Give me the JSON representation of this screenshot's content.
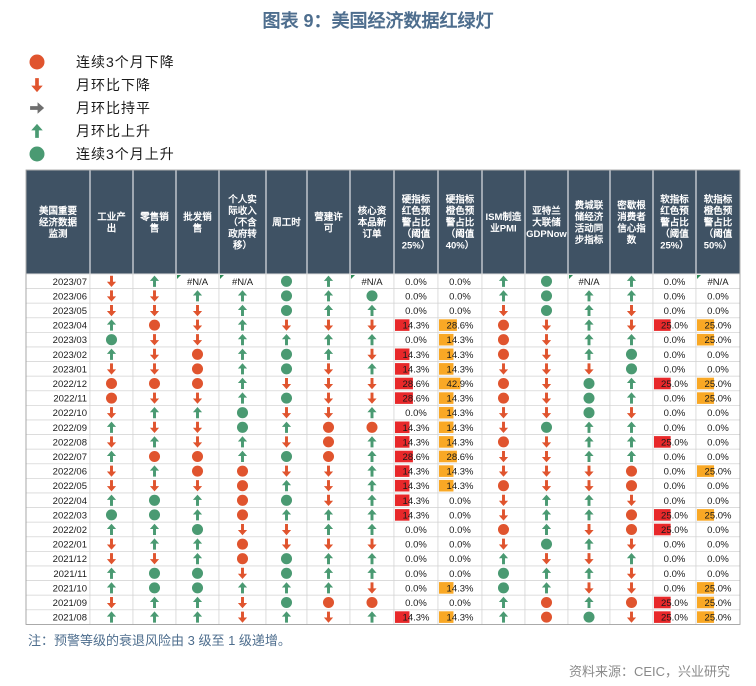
{
  "title": "图表 9：美国经济数据红绿灯",
  "legend": [
    {
      "icon": "red-dot",
      "label": "连续3个月下降"
    },
    {
      "icon": "down-arrow",
      "label": "月环比下降"
    },
    {
      "icon": "right-arrow",
      "label": "月环比持平"
    },
    {
      "icon": "up-arrow",
      "label": "月环比上升"
    },
    {
      "icon": "green-dot",
      "label": "连续3个月上升"
    }
  ],
  "colors": {
    "header_bg": "#3f5264",
    "red": "#e0542e",
    "green": "#4a9a72",
    "gray": "#6f6f6f",
    "bar_red": "#e8282a",
    "bar_orange": "#f9a825",
    "title": "#4e6e8e"
  },
  "chart_data": {
    "type": "table",
    "columns": [
      "美国重要经济数据监测",
      "工业产出",
      "零售销售",
      "批发销售",
      "个人实际收入（不含政府转移）",
      "周工时",
      "营建许可",
      "核心资本品新订单",
      "硬指标红色预警占比（阈值25%）",
      "硬指标橙色预警占比（阈值40%）",
      "ISM制造业PMI",
      "亚特兰大联储GDPNow",
      "费城联储经济活动同步指标",
      "密歇根消费者信心指数",
      "软指标红色预警占比（阈值25%）",
      "软指标橙色预警占比（阈值50%）"
    ],
    "signal_codes": {
      "R": "red-dot",
      "D": "down-arrow",
      "F": "right-arrow",
      "U": "up-arrow",
      "G": "green-dot",
      "N": "#N/A"
    },
    "rows": [
      {
        "date": "2023/07",
        "s1": [
          "D",
          "U",
          "N",
          "N",
          "G",
          "U",
          "N"
        ],
        "h": [
          "0.0%",
          "0.0%"
        ],
        "s2": [
          "U",
          "G",
          "N",
          "U"
        ],
        "sf": [
          "0.0%",
          "#N/A"
        ]
      },
      {
        "date": "2023/06",
        "s1": [
          "D",
          "D",
          "U",
          "U",
          "G",
          "U",
          "G"
        ],
        "h": [
          "0.0%",
          "0.0%"
        ],
        "s2": [
          "U",
          "G",
          "U",
          "U"
        ],
        "sf": [
          "0.0%",
          "0.0%"
        ]
      },
      {
        "date": "2023/05",
        "s1": [
          "D",
          "D",
          "D",
          "U",
          "G",
          "U",
          "U"
        ],
        "h": [
          "0.0%",
          "0.0%"
        ],
        "s2": [
          "D",
          "G",
          "U",
          "D"
        ],
        "sf": [
          "0.0%",
          "0.0%"
        ]
      },
      {
        "date": "2023/04",
        "s1": [
          "U",
          "R",
          "D",
          "U",
          "D",
          "D",
          "D"
        ],
        "h": [
          "14.3%",
          "28.6%"
        ],
        "s2": [
          "R",
          "D",
          "U",
          "D"
        ],
        "sf": [
          "25.0%",
          "25.0%"
        ]
      },
      {
        "date": "2023/03",
        "s1": [
          "G",
          "D",
          "D",
          "U",
          "U",
          "U",
          "U"
        ],
        "h": [
          "0.0%",
          "14.3%"
        ],
        "s2": [
          "R",
          "D",
          "U",
          "U"
        ],
        "sf": [
          "0.0%",
          "25.0%"
        ]
      },
      {
        "date": "2023/02",
        "s1": [
          "U",
          "D",
          "R",
          "U",
          "G",
          "U",
          "D"
        ],
        "h": [
          "14.3%",
          "14.3%"
        ],
        "s2": [
          "R",
          "D",
          "U",
          "G"
        ],
        "sf": [
          "0.0%",
          "0.0%"
        ]
      },
      {
        "date": "2023/01",
        "s1": [
          "D",
          "D",
          "R",
          "U",
          "G",
          "D",
          "U"
        ],
        "h": [
          "14.3%",
          "14.3%"
        ],
        "s2": [
          "D",
          "D",
          "D",
          "G"
        ],
        "sf": [
          "0.0%",
          "0.0%"
        ]
      },
      {
        "date": "2022/12",
        "s1": [
          "R",
          "R",
          "R",
          "U",
          "D",
          "D",
          "D"
        ],
        "h": [
          "28.6%",
          "42.9%"
        ],
        "s2": [
          "R",
          "D",
          "G",
          "U"
        ],
        "sf": [
          "25.0%",
          "25.0%"
        ]
      },
      {
        "date": "2022/11",
        "s1": [
          "R",
          "D",
          "D",
          "U",
          "G",
          "D",
          "D"
        ],
        "h": [
          "28.6%",
          "14.3%"
        ],
        "s2": [
          "R",
          "D",
          "G",
          "U"
        ],
        "sf": [
          "0.0%",
          "25.0%"
        ]
      },
      {
        "date": "2022/10",
        "s1": [
          "D",
          "U",
          "U",
          "G",
          "D",
          "D",
          "U"
        ],
        "h": [
          "0.0%",
          "14.3%"
        ],
        "s2": [
          "D",
          "D",
          "G",
          "D"
        ],
        "sf": [
          "0.0%",
          "0.0%"
        ]
      },
      {
        "date": "2022/09",
        "s1": [
          "U",
          "D",
          "D",
          "G",
          "U",
          "R",
          "R"
        ],
        "h": [
          "14.3%",
          "14.3%"
        ],
        "s2": [
          "D",
          "G",
          "U",
          "U"
        ],
        "sf": [
          "0.0%",
          "0.0%"
        ]
      },
      {
        "date": "2022/08",
        "s1": [
          "D",
          "U",
          "D",
          "U",
          "D",
          "R",
          "U"
        ],
        "h": [
          "14.3%",
          "14.3%"
        ],
        "s2": [
          "R",
          "D",
          "U",
          "U"
        ],
        "sf": [
          "25.0%",
          "0.0%"
        ]
      },
      {
        "date": "2022/07",
        "s1": [
          "U",
          "R",
          "R",
          "U",
          "G",
          "R",
          "U"
        ],
        "h": [
          "28.6%",
          "28.6%"
        ],
        "s2": [
          "D",
          "D",
          "U",
          "U"
        ],
        "sf": [
          "0.0%",
          "0.0%"
        ]
      },
      {
        "date": "2022/06",
        "s1": [
          "D",
          "U",
          "R",
          "R",
          "D",
          "D",
          "U"
        ],
        "h": [
          "14.3%",
          "14.3%"
        ],
        "s2": [
          "D",
          "D",
          "D",
          "R"
        ],
        "sf": [
          "0.0%",
          "25.0%"
        ]
      },
      {
        "date": "2022/05",
        "s1": [
          "D",
          "D",
          "D",
          "R",
          "U",
          "D",
          "U"
        ],
        "h": [
          "14.3%",
          "14.3%"
        ],
        "s2": [
          "R",
          "D",
          "D",
          "R"
        ],
        "sf": [
          "0.0%",
          "0.0%"
        ]
      },
      {
        "date": "2022/04",
        "s1": [
          "U",
          "G",
          "U",
          "R",
          "G",
          "D",
          "U"
        ],
        "h": [
          "14.3%",
          "0.0%"
        ],
        "s2": [
          "D",
          "U",
          "U",
          "D"
        ],
        "sf": [
          "0.0%",
          "0.0%"
        ]
      },
      {
        "date": "2022/03",
        "s1": [
          "G",
          "G",
          "U",
          "R",
          "U",
          "U",
          "U"
        ],
        "h": [
          "14.3%",
          "0.0%"
        ],
        "s2": [
          "D",
          "U",
          "U",
          "R"
        ],
        "sf": [
          "25.0%",
          "25.0%"
        ]
      },
      {
        "date": "2022/02",
        "s1": [
          "U",
          "U",
          "G",
          "D",
          "D",
          "U",
          "U"
        ],
        "h": [
          "0.0%",
          "0.0%"
        ],
        "s2": [
          "R",
          "U",
          "D",
          "R"
        ],
        "sf": [
          "25.0%",
          "0.0%"
        ]
      },
      {
        "date": "2022/01",
        "s1": [
          "D",
          "U",
          "U",
          "R",
          "D",
          "D",
          "D"
        ],
        "h": [
          "0.0%",
          "0.0%"
        ],
        "s2": [
          "D",
          "G",
          "U",
          "D"
        ],
        "sf": [
          "0.0%",
          "0.0%"
        ]
      },
      {
        "date": "2021/12",
        "s1": [
          "D",
          "D",
          "U",
          "R",
          "G",
          "U",
          "U"
        ],
        "h": [
          "0.0%",
          "0.0%"
        ],
        "s2": [
          "U",
          "D",
          "D",
          "U"
        ],
        "sf": [
          "0.0%",
          "0.0%"
        ]
      },
      {
        "date": "2021/11",
        "s1": [
          "U",
          "G",
          "G",
          "D",
          "G",
          "U",
          "U"
        ],
        "h": [
          "0.0%",
          "0.0%"
        ],
        "s2": [
          "G",
          "U",
          "U",
          "D"
        ],
        "sf": [
          "0.0%",
          "0.0%"
        ]
      },
      {
        "date": "2021/10",
        "s1": [
          "U",
          "G",
          "G",
          "U",
          "U",
          "U",
          "D"
        ],
        "h": [
          "0.0%",
          "14.3%"
        ],
        "s2": [
          "G",
          "U",
          "D",
          "D"
        ],
        "sf": [
          "0.0%",
          "25.0%"
        ]
      },
      {
        "date": "2021/09",
        "s1": [
          "D",
          "U",
          "U",
          "D",
          "G",
          "R",
          "R"
        ],
        "h": [
          "0.0%",
          "0.0%"
        ],
        "s2": [
          "U",
          "R",
          "U",
          "R"
        ],
        "sf": [
          "25.0%",
          "25.0%"
        ]
      },
      {
        "date": "2021/08",
        "s1": [
          "U",
          "U",
          "U",
          "D",
          "U",
          "D",
          "U"
        ],
        "h": [
          "14.3%",
          "14.3%"
        ],
        "s2": [
          "U",
          "R",
          "G",
          "D"
        ],
        "sf": [
          "25.0%",
          "25.0%"
        ]
      }
    ]
  },
  "note": "注：预警等级的衰退风险由 3 级至 1 级递增。",
  "source": "资料来源：CEIC，兴业研究"
}
